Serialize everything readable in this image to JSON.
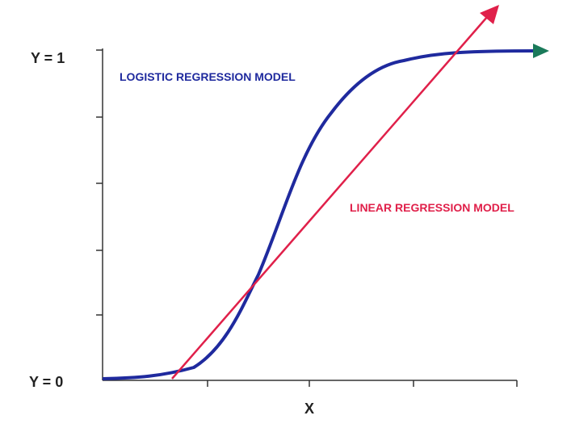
{
  "labels": {
    "y_top": "Y = 1",
    "y_bottom": "Y = 0",
    "x_axis": "X",
    "logistic": "LOGISTIC REGRESSION MODEL",
    "linear": "LINEAR REGRESSION MODEL"
  }
}
